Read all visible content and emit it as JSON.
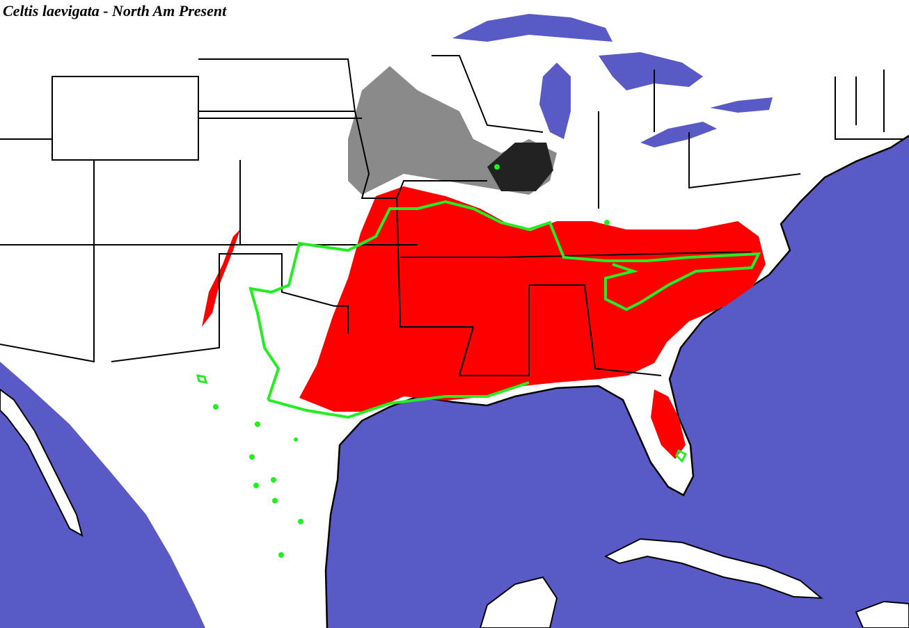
{
  "title": "Celtis laevigata - North Am Present"
}
